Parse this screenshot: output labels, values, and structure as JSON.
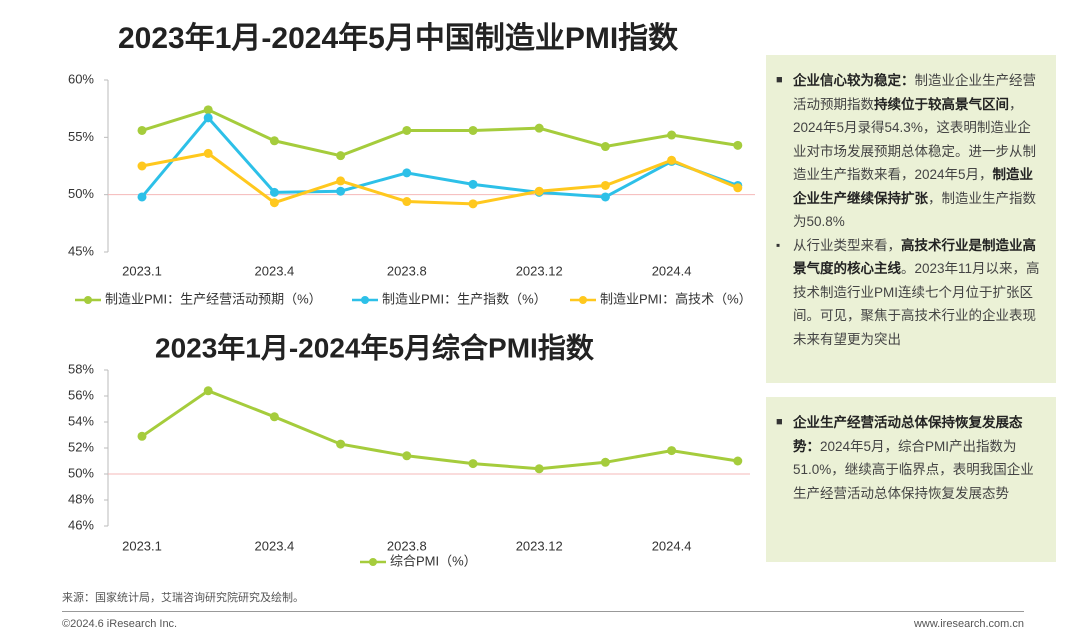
{
  "chart_data": [
    {
      "type": "line",
      "title": "2023年1月-2024年5月中国制造业PMI指数",
      "categories": [
        "2023.1",
        null,
        "2023.4",
        null,
        "2023.8",
        null,
        "2023.12",
        null,
        "2024.4",
        null
      ],
      "series": [
        {
          "name": "制造业PMI：生产经营活动预期（%）",
          "color": "#a5cc3c",
          "values": [
            55.6,
            57.4,
            54.7,
            53.4,
            55.6,
            55.6,
            55.8,
            54.2,
            55.2,
            54.3
          ]
        },
        {
          "name": "制造业PMI：生产指数（%）",
          "color": "#2dc0e8",
          "values": [
            49.8,
            56.7,
            50.2,
            50.3,
            51.9,
            50.9,
            50.2,
            49.8,
            52.9,
            50.8
          ]
        },
        {
          "name": "制造业PMI：高技术（%）",
          "color": "#ffc81e",
          "values": [
            52.5,
            53.6,
            49.3,
            51.2,
            49.4,
            49.2,
            50.3,
            50.8,
            53.0,
            50.6
          ]
        }
      ],
      "ylim": [
        45,
        60
      ],
      "yticks": [
        {
          "value": 45,
          "label": "45%"
        },
        {
          "value": 50,
          "label": "50%"
        },
        {
          "value": 55,
          "label": "55%"
        },
        {
          "value": 60,
          "label": "60%"
        }
      ],
      "reference_line": 50,
      "reference_color": "#f4b8b8"
    },
    {
      "type": "line",
      "title": "2023年1月-2024年5月综合PMI指数",
      "categories": [
        "2023.1",
        null,
        "2023.4",
        null,
        "2023.8",
        null,
        "2023.12",
        null,
        "2024.4",
        null
      ],
      "series": [
        {
          "name": "综合PMI（%）",
          "color": "#a5cc3c",
          "values": [
            52.9,
            56.4,
            54.4,
            52.3,
            51.4,
            50.8,
            50.4,
            50.9,
            51.8,
            51.0
          ]
        }
      ],
      "ylim": [
        46,
        58
      ],
      "yticks": [
        {
          "value": 46,
          "label": "46%"
        },
        {
          "value": 48,
          "label": "48%"
        },
        {
          "value": 50,
          "label": "50%"
        },
        {
          "value": 52,
          "label": "52%"
        },
        {
          "value": 54,
          "label": "54%"
        },
        {
          "value": 56,
          "label": "56%"
        },
        {
          "value": 58,
          "label": "58%"
        }
      ],
      "reference_line": 50,
      "reference_color": "#f4b8b8"
    }
  ],
  "notes": [
    {
      "paragraphs": [
        {
          "bullet": "main",
          "segments": [
            {
              "text": "企业信心较为稳定：",
              "bold": true
            },
            {
              "text": "制造业企业生产经营活动预期指数",
              "bold": false
            },
            {
              "text": "持续位于较高景气区间",
              "bold": true
            },
            {
              "text": "，2024年5月录得54.3%，这表明制造业企业对市场发展预期总体稳定。进一步从制造业生产指数来看，2024年5月，",
              "bold": false
            },
            {
              "text": "制造业企业生产继续保持扩张",
              "bold": true
            },
            {
              "text": "，制造业生产指数为50.8%",
              "bold": false
            }
          ]
        },
        {
          "bullet": "sub",
          "segments": [
            {
              "text": "从行业类型来看，",
              "bold": false
            },
            {
              "text": "高技术行业是制造业高景气度的核心主线",
              "bold": true
            },
            {
              "text": "。2023年11月以来，高技术制造行业PMI连续七个月位于扩张区间。可见，聚焦于高技术行业的企业表现未来有望更为突出",
              "bold": false
            }
          ]
        }
      ]
    },
    {
      "paragraphs": [
        {
          "bullet": "main",
          "segments": [
            {
              "text": "企业生产经营活动总体保持恢复发展态势：",
              "bold": true
            },
            {
              "text": "2024年5月，综合PMI产出指数为51.0%，继续高于临界点，表明我国企业生产经营活动总体保持恢复发展态势",
              "bold": false
            }
          ]
        }
      ]
    }
  ],
  "source": "来源：国家统计局，艾瑞咨询研究院研究及绘制。",
  "copyright": "©2024.6 iResearch Inc.",
  "website": "www.iresearch.com.cn"
}
